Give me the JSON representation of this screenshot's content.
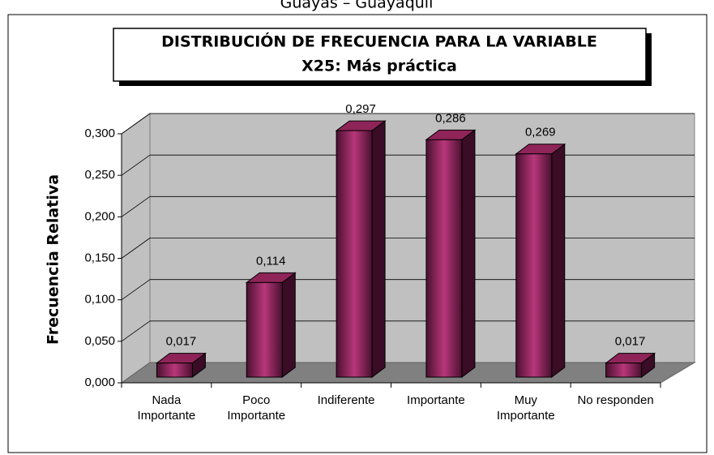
{
  "caption": "Guayas – Guayaquil",
  "chart_data": {
    "type": "bar",
    "title": [
      "DISTRIBUCIÓN DE FRECUENCIA PARA LA VARIABLE",
      "X25: Más práctica"
    ],
    "y_label": "Frecuencia Relativa",
    "categories": [
      "Nada Importante",
      "Poco Importante",
      "Indiferente",
      "Importante",
      "Muy Importante",
      "No responden"
    ],
    "values": [
      0.017,
      0.114,
      0.297,
      0.286,
      0.269,
      0.017
    ],
    "value_labels": [
      "0,017",
      "0,114",
      "0,297",
      "0,286",
      "0,269",
      "0,017"
    ],
    "color": "#8e2458",
    "ylim": [
      0,
      0.3
    ],
    "yticks": [
      {
        "value": 0,
        "label": "0,000"
      },
      {
        "value": 0.05,
        "label": "0,050"
      },
      {
        "value": 0.1,
        "label": "0,100"
      },
      {
        "value": 0.15,
        "label": "0,150"
      },
      {
        "value": 0.2,
        "label": "0,200"
      },
      {
        "value": 0.25,
        "label": "0,250"
      },
      {
        "value": 0.3,
        "label": "0,300"
      }
    ],
    "grid": true
  }
}
